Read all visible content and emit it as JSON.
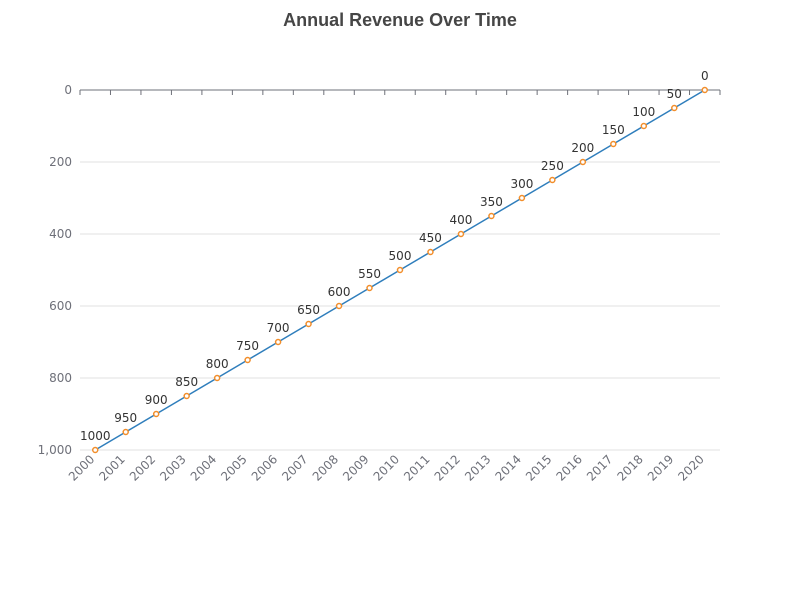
{
  "chart_data": {
    "type": "line",
    "title": "Annual Revenue Over Time",
    "xlabel": "",
    "ylabel": "",
    "categories": [
      "2000",
      "2001",
      "2002",
      "2003",
      "2004",
      "2005",
      "2006",
      "2007",
      "2008",
      "2009",
      "2010",
      "2011",
      "2012",
      "2013",
      "2014",
      "2015",
      "2016",
      "2017",
      "2018",
      "2019",
      "2020"
    ],
    "values": [
      1000,
      950,
      900,
      850,
      800,
      750,
      700,
      650,
      600,
      550,
      500,
      450,
      400,
      350,
      300,
      250,
      200,
      150,
      100,
      50,
      0
    ],
    "data_labels": [
      "1000",
      "950",
      "900",
      "850",
      "800",
      "750",
      "700",
      "650",
      "600",
      "550",
      "500",
      "450",
      "400",
      "350",
      "300",
      "250",
      "200",
      "150",
      "100",
      "50",
      "0"
    ],
    "yticks": [
      0,
      200,
      400,
      600,
      800,
      1000
    ],
    "ytick_labels": [
      "0",
      "200",
      "400",
      "600",
      "800",
      "1,000"
    ],
    "ylim": [
      0,
      1000
    ],
    "y_inverted": true,
    "grid": true,
    "legend": "none",
    "colors": {
      "line": "#2f7ebc",
      "point": "#f28e2b",
      "grid": "#e0e0e0",
      "axis": "#6e7079"
    }
  }
}
